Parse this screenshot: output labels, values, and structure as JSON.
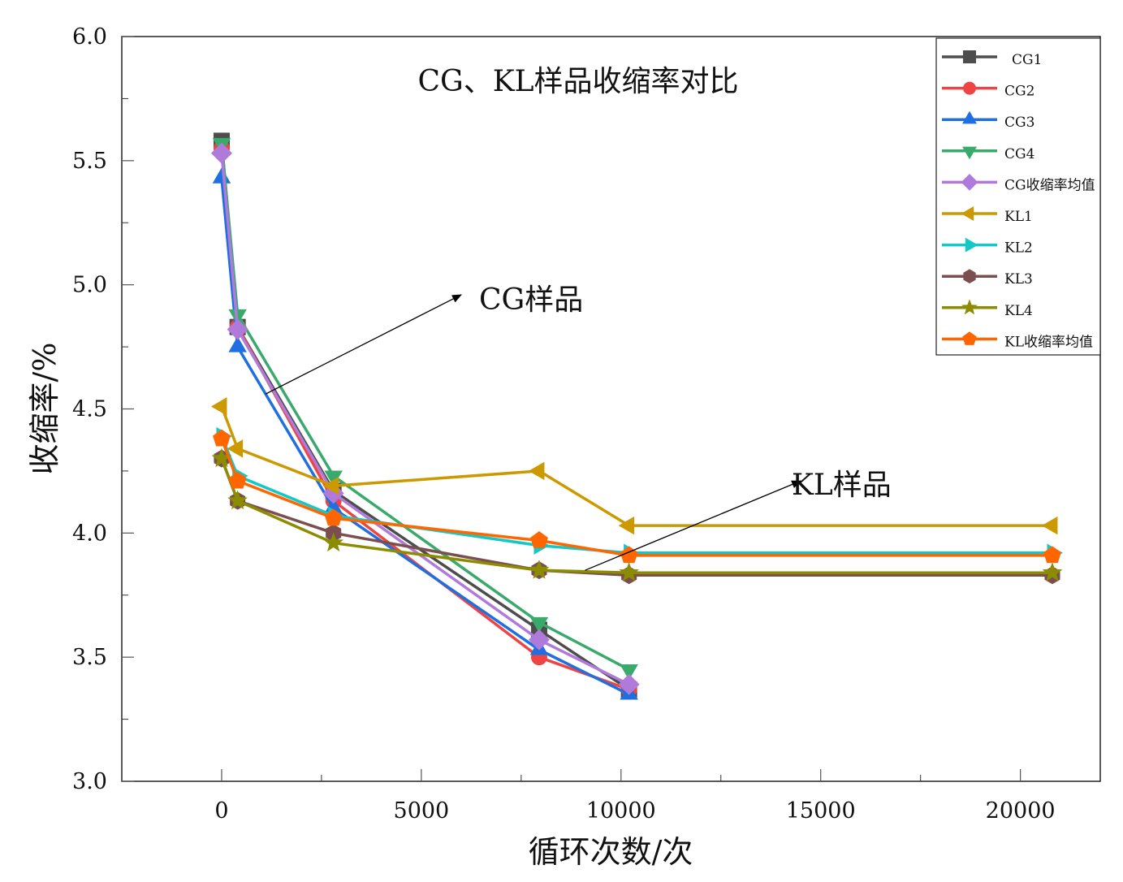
{
  "chart_data": {
    "type": "line",
    "title": "CG、KL样品收缩率对比",
    "xlabel": "循环次数/次",
    "ylabel": "收缩率/%",
    "xlim": [
      -2500,
      22000
    ],
    "ylim": [
      3.0,
      6.0
    ],
    "xticks": [
      0,
      5000,
      10000,
      15000,
      20000
    ],
    "xtick_labels": [
      "0",
      "5000",
      "10000",
      "15000",
      "20000"
    ],
    "xminor": [
      2500,
      7500,
      12500,
      17500
    ],
    "yticks": [
      3.0,
      3.5,
      4.0,
      4.5,
      5.0,
      5.5,
      6.0
    ],
    "ytick_labels": [
      "3.0",
      "3.5",
      "4.0",
      "4.5",
      "5.0",
      "5.5",
      "6.0"
    ],
    "yminor": [
      3.25,
      3.75,
      4.25,
      4.75,
      5.25,
      5.75
    ],
    "grid": false,
    "legend_position": "top-right",
    "series": [
      {
        "name": "CG1",
        "color": "#4d4d4d",
        "marker": "square",
        "x": [
          0,
          400,
          2800,
          7950,
          10200
        ],
        "y": [
          5.58,
          4.83,
          4.17,
          3.61,
          3.37
        ]
      },
      {
        "name": "CG2",
        "color": "#ef4444",
        "marker": "circle",
        "x": [
          0,
          400,
          2800,
          7950,
          10200
        ],
        "y": [
          5.55,
          4.83,
          4.13,
          3.5,
          3.37
        ]
      },
      {
        "name": "CG3",
        "color": "#1f6fe0",
        "marker": "triangle-up",
        "x": [
          0,
          400,
          2800,
          7950,
          10200
        ],
        "y": [
          5.43,
          4.75,
          4.1,
          3.53,
          3.35
        ]
      },
      {
        "name": "CG4",
        "color": "#3aaa6c",
        "marker": "triangle-down",
        "x": [
          0,
          400,
          2800,
          7950,
          10200
        ],
        "y": [
          5.57,
          4.88,
          4.23,
          3.64,
          3.45
        ]
      },
      {
        "name": "CG收缩率均值",
        "color": "#b07ada",
        "marker": "diamond",
        "x": [
          0,
          400,
          2800,
          7950,
          10200
        ],
        "y": [
          5.53,
          4.82,
          4.16,
          3.57,
          3.39
        ]
      },
      {
        "name": "KL1",
        "color": "#cc9900",
        "marker": "triangle-left",
        "x": [
          0,
          400,
          2800,
          7950,
          10200,
          20800
        ],
        "y": [
          4.51,
          4.34,
          4.19,
          4.25,
          4.03,
          4.03
        ]
      },
      {
        "name": "KL2",
        "color": "#14c8c8",
        "marker": "triangle-right",
        "x": [
          0,
          400,
          2800,
          7950,
          10200,
          20800
        ],
        "y": [
          4.39,
          4.23,
          4.07,
          3.95,
          3.92,
          3.92
        ]
      },
      {
        "name": "KL3",
        "color": "#7b4f4f",
        "marker": "hexagon",
        "x": [
          0,
          400,
          2800,
          7950,
          10200,
          20800
        ],
        "y": [
          4.3,
          4.13,
          4.0,
          3.85,
          3.83,
          3.83
        ]
      },
      {
        "name": "KL4",
        "color": "#8c8c00",
        "marker": "star",
        "x": [
          0,
          400,
          2800,
          7950,
          10200,
          20800
        ],
        "y": [
          4.3,
          4.13,
          3.96,
          3.85,
          3.84,
          3.84
        ]
      },
      {
        "name": "KL收缩率均值",
        "color": "#ff6600",
        "marker": "pentagon",
        "x": [
          0,
          400,
          2800,
          7950,
          10200,
          20800
        ],
        "y": [
          4.38,
          4.21,
          4.06,
          3.97,
          3.91,
          3.91
        ]
      }
    ],
    "annotations": [
      {
        "text": "CG样品",
        "arrow_from": [
          1100,
          4.56
        ],
        "arrow_to": [
          6000,
          4.96
        ]
      },
      {
        "text": "KL样品",
        "arrow_from": [
          9100,
          3.85
        ],
        "arrow_to": [
          14500,
          4.21
        ]
      }
    ]
  }
}
